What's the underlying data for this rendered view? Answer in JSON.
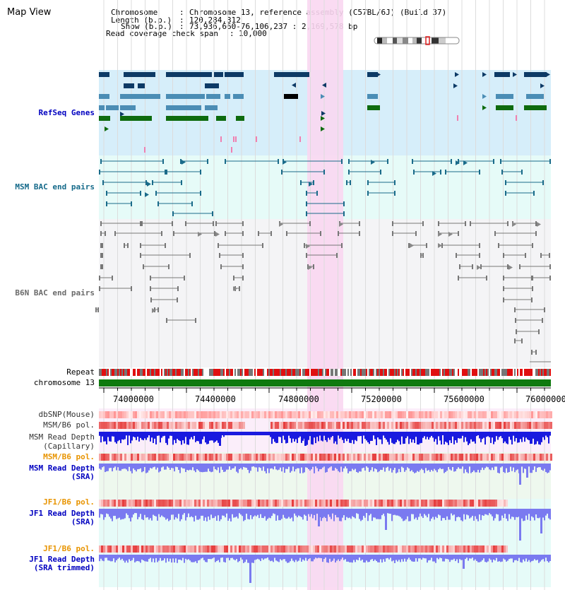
{
  "title": "Map View",
  "header": {
    "chromosome_label": "Chromosome",
    "chromosome_value": "Chromosome 13, reference assembly (C57BL/6J) (Build 37)",
    "length_label": "Length (b.p.)",
    "length_value": "120,284,312",
    "show_label": "Show (b.p.)",
    "show_value": "73,936,660-76,106,237 : 2,169,578 bp",
    "coverage_label": "Read coverage check span",
    "coverage_value": "10,000"
  },
  "tracks": {
    "refseq": "RefSeq Genes",
    "msm_bac": "MSM BAC end pairs",
    "b6n_bac": "B6N BAC end pairs",
    "repeat": "Repeat",
    "chromosome": "chromosome 13",
    "dbsnp": "dbSNP(Mouse)",
    "msm_b6_pol": "MSM/B6 pol.",
    "msm_depth_cap_1": "MSM Read Depth",
    "msm_depth_cap_2": "(Capillary)",
    "msm_b6_pol_2": "MSM/B6 pol.",
    "msm_depth_sra_1": "MSM Read Depth",
    "msm_depth_sra_2": "(SRA)",
    "jf1_b6_pol": "JF1/B6 pol.",
    "jf1_depth_sra_1": "JF1 Read Depth",
    "jf1_depth_sra_2": "(SRA)",
    "jf1_b6_pol_2": "JF1/B6 pol.",
    "jf1_depth_trim_1": "JF1 Read Depth",
    "jf1_depth_trim_2": "(SRA trimmed)"
  },
  "axis_ticks": [
    "74000000",
    "74400000",
    "74800000",
    "75200000",
    "75600000",
    "76000000"
  ],
  "colors": {
    "refseq_bg": "#d6eefa",
    "bac_bg": "#e6fbf8",
    "highlight": "#f9d7f1",
    "gene_dark": "#0d3a66",
    "gene_mid": "#4b8db5",
    "gene_green": "#0e6b0e",
    "msm_bac": "#1a6b8a",
    "b6n_bac": "#777777",
    "chromosome": "#0f7a0f",
    "depth_cap": "#1a1adf",
    "depth_sra": "#7a7af0",
    "label_blue": "#0000c0",
    "label_teal": "#156a8a",
    "label_orange": "#e89400"
  }
}
